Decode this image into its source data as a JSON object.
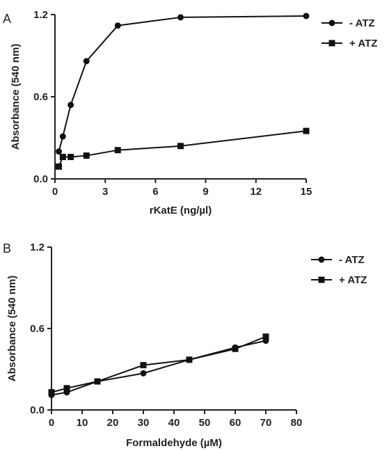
{
  "chart_data": [
    {
      "panel": "A",
      "type": "line",
      "xlabel": "rKatE (ng/µl)",
      "ylabel": "Absorbance (540 nm)",
      "xlim": [
        0,
        15
      ],
      "ylim": [
        0,
        1.2
      ],
      "xticks": [
        "0",
        "3",
        "6",
        "9",
        "12",
        "15"
      ],
      "yticks": [
        "0.0",
        "0.6",
        "1.2"
      ],
      "grid": false,
      "legend": "top-right",
      "series": [
        {
          "name": "- ATZ",
          "marker": "circle",
          "x": [
            0.23,
            0.47,
            0.94,
            1.88,
            3.75,
            7.5,
            15
          ],
          "y": [
            0.2,
            0.31,
            0.54,
            0.86,
            1.12,
            1.18,
            1.19
          ]
        },
        {
          "name": "+ ATZ",
          "marker": "square",
          "x": [
            0.23,
            0.47,
            0.94,
            1.88,
            3.75,
            7.5,
            15
          ],
          "y": [
            0.09,
            0.16,
            0.16,
            0.17,
            0.21,
            0.24,
            0.35
          ]
        }
      ]
    },
    {
      "panel": "B",
      "type": "line",
      "xlabel": "Formaldehyde (µM)",
      "ylabel": "Absorbance (540 nm)",
      "xlim": [
        0,
        80
      ],
      "ylim": [
        0,
        1.2
      ],
      "xticks": [
        "0",
        "10",
        "20",
        "30",
        "40",
        "50",
        "60",
        "70",
        "80"
      ],
      "yticks": [
        "0.0",
        "0.6",
        "1.2"
      ],
      "grid": false,
      "legend": "top-right",
      "series": [
        {
          "name": "- ATZ",
          "marker": "circle",
          "x": [
            0,
            5,
            15,
            30,
            45,
            60,
            70
          ],
          "y": [
            0.11,
            0.13,
            0.21,
            0.27,
            0.37,
            0.46,
            0.51
          ]
        },
        {
          "name": "+ ATZ",
          "marker": "square",
          "x": [
            0,
            5,
            15,
            30,
            45,
            60,
            70
          ],
          "y": [
            0.13,
            0.16,
            0.21,
            0.33,
            0.37,
            0.45,
            0.54
          ]
        }
      ]
    }
  ]
}
